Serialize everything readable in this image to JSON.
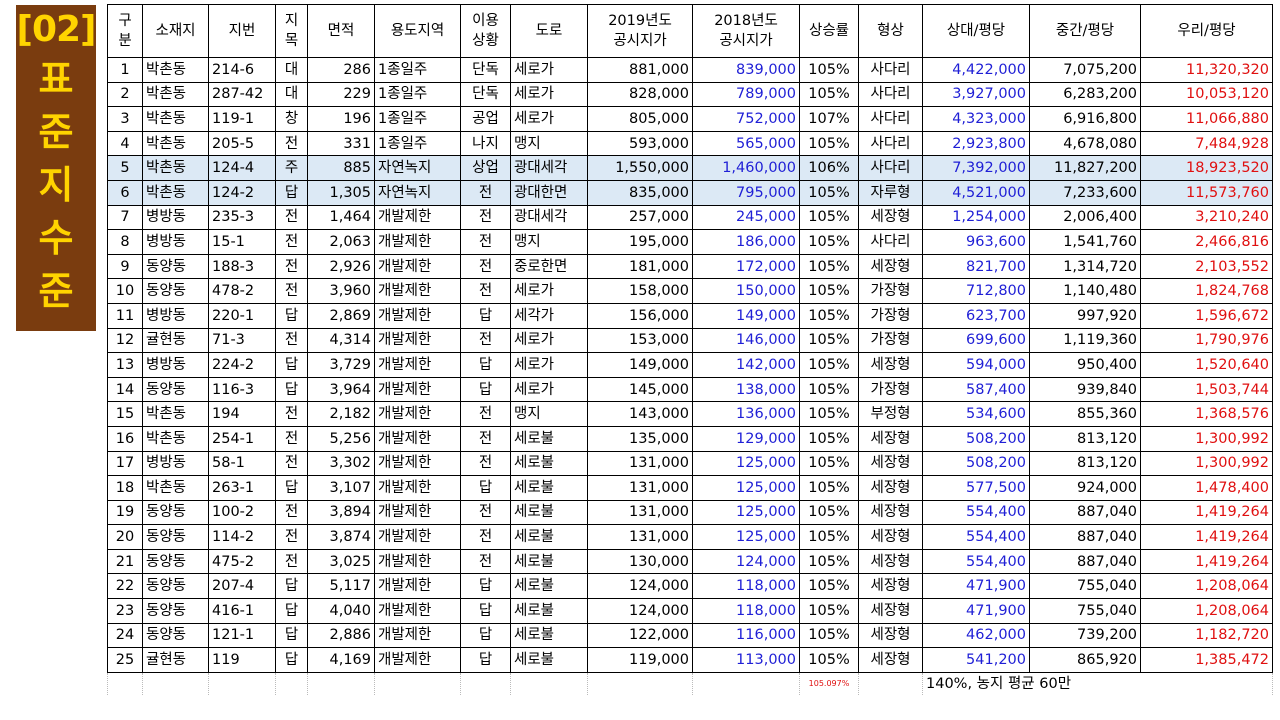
{
  "side_panel": {
    "code": "[02]",
    "vertical_chars": [
      "표",
      "준",
      "지",
      "수",
      "준"
    ]
  },
  "table": {
    "headers": {
      "no": "구\n분",
      "location": "소재지",
      "lot": "지번",
      "category": "지\n목",
      "area": "면적",
      "zoning": "용도지역",
      "usage": "이용\n상황",
      "road": "도로",
      "price_2019": "2019년도\n공시지가",
      "price_2018": "2018년도\n공시지가",
      "rise": "상승률",
      "shape": "형상",
      "per_pyeong_a": "상대/평당",
      "per_pyeong_b": "중간/평당",
      "per_pyeong_c": "우리/평당"
    },
    "rows": [
      [
        "1",
        "박촌동",
        "214-6",
        "대",
        "286",
        "1종일주",
        "단독",
        "세로가",
        "881,000",
        "839,000",
        "105%",
        "사다리",
        "4,422,000",
        "7,075,200",
        "11,320,320"
      ],
      [
        "2",
        "박촌동",
        "287-42",
        "대",
        "229",
        "1종일주",
        "단독",
        "세로가",
        "828,000",
        "789,000",
        "105%",
        "사다리",
        "3,927,000",
        "6,283,200",
        "10,053,120"
      ],
      [
        "3",
        "박촌동",
        "119-1",
        "창",
        "196",
        "1종일주",
        "공업",
        "세로가",
        "805,000",
        "752,000",
        "107%",
        "사다리",
        "4,323,000",
        "6,916,800",
        "11,066,880"
      ],
      [
        "4",
        "박촌동",
        "205-5",
        "전",
        "331",
        "1종일주",
        "나지",
        "맹지",
        "593,000",
        "565,000",
        "105%",
        "사다리",
        "2,923,800",
        "4,678,080",
        "7,484,928"
      ],
      [
        "5",
        "박촌동",
        "124-4",
        "주",
        "885",
        "자연녹지",
        "상업",
        "광대세각",
        "1,550,000",
        "1,460,000",
        "106%",
        "사다리",
        "7,392,000",
        "11,827,200",
        "18,923,520"
      ],
      [
        "6",
        "박촌동",
        "124-2",
        "답",
        "1,305",
        "자연녹지",
        "전",
        "광대한면",
        "835,000",
        "795,000",
        "105%",
        "자루형",
        "4,521,000",
        "7,233,600",
        "11,573,760"
      ],
      [
        "7",
        "병방동",
        "235-3",
        "전",
        "1,464",
        "개발제한",
        "전",
        "광대세각",
        "257,000",
        "245,000",
        "105%",
        "세장형",
        "1,254,000",
        "2,006,400",
        "3,210,240"
      ],
      [
        "8",
        "병방동",
        "15-1",
        "전",
        "2,063",
        "개발제한",
        "전",
        "맹지",
        "195,000",
        "186,000",
        "105%",
        "사다리",
        "963,600",
        "1,541,760",
        "2,466,816"
      ],
      [
        "9",
        "동양동",
        "188-3",
        "전",
        "2,926",
        "개발제한",
        "전",
        "중로한면",
        "181,000",
        "172,000",
        "105%",
        "세장형",
        "821,700",
        "1,314,720",
        "2,103,552"
      ],
      [
        "10",
        "동양동",
        "478-2",
        "전",
        "3,960",
        "개발제한",
        "전",
        "세로가",
        "158,000",
        "150,000",
        "105%",
        "가장형",
        "712,800",
        "1,140,480",
        "1,824,768"
      ],
      [
        "11",
        "병방동",
        "220-1",
        "답",
        "2,869",
        "개발제한",
        "답",
        "세각가",
        "156,000",
        "149,000",
        "105%",
        "가장형",
        "623,700",
        "997,920",
        "1,596,672"
      ],
      [
        "12",
        "귤현동",
        "71-3",
        "전",
        "4,314",
        "개발제한",
        "전",
        "세로가",
        "153,000",
        "146,000",
        "105%",
        "가장형",
        "699,600",
        "1,119,360",
        "1,790,976"
      ],
      [
        "13",
        "병방동",
        "224-2",
        "답",
        "3,729",
        "개발제한",
        "답",
        "세로가",
        "149,000",
        "142,000",
        "105%",
        "세장형",
        "594,000",
        "950,400",
        "1,520,640"
      ],
      [
        "14",
        "동양동",
        "116-3",
        "답",
        "3,964",
        "개발제한",
        "답",
        "세로가",
        "145,000",
        "138,000",
        "105%",
        "가장형",
        "587,400",
        "939,840",
        "1,503,744"
      ],
      [
        "15",
        "박촌동",
        "194",
        "전",
        "2,182",
        "개발제한",
        "전",
        "맹지",
        "143,000",
        "136,000",
        "105%",
        "부정형",
        "534,600",
        "855,360",
        "1,368,576"
      ],
      [
        "16",
        "박촌동",
        "254-1",
        "전",
        "5,256",
        "개발제한",
        "전",
        "세로불",
        "135,000",
        "129,000",
        "105%",
        "세장형",
        "508,200",
        "813,120",
        "1,300,992"
      ],
      [
        "17",
        "병방동",
        "58-1",
        "전",
        "3,302",
        "개발제한",
        "전",
        "세로불",
        "131,000",
        "125,000",
        "105%",
        "세장형",
        "508,200",
        "813,120",
        "1,300,992"
      ],
      [
        "18",
        "박촌동",
        "263-1",
        "답",
        "3,107",
        "개발제한",
        "답",
        "세로불",
        "131,000",
        "125,000",
        "105%",
        "세장형",
        "577,500",
        "924,000",
        "1,478,400"
      ],
      [
        "19",
        "동양동",
        "100-2",
        "전",
        "3,894",
        "개발제한",
        "전",
        "세로불",
        "131,000",
        "125,000",
        "105%",
        "세장형",
        "554,400",
        "887,040",
        "1,419,264"
      ],
      [
        "20",
        "동양동",
        "114-2",
        "전",
        "3,874",
        "개발제한",
        "전",
        "세로불",
        "131,000",
        "125,000",
        "105%",
        "세장형",
        "554,400",
        "887,040",
        "1,419,264"
      ],
      [
        "21",
        "동양동",
        "475-2",
        "전",
        "3,025",
        "개발제한",
        "전",
        "세로불",
        "130,000",
        "124,000",
        "105%",
        "세장형",
        "554,400",
        "887,040",
        "1,419,264"
      ],
      [
        "22",
        "동양동",
        "207-4",
        "답",
        "5,117",
        "개발제한",
        "답",
        "세로불",
        "124,000",
        "118,000",
        "105%",
        "세장형",
        "471,900",
        "755,040",
        "1,208,064"
      ],
      [
        "23",
        "동양동",
        "416-1",
        "답",
        "4,040",
        "개발제한",
        "답",
        "세로불",
        "124,000",
        "118,000",
        "105%",
        "세장형",
        "471,900",
        "755,040",
        "1,208,064"
      ],
      [
        "24",
        "동양동",
        "121-1",
        "답",
        "2,886",
        "개발제한",
        "답",
        "세로불",
        "122,000",
        "116,000",
        "105%",
        "세장형",
        "462,000",
        "739,200",
        "1,182,720"
      ],
      [
        "25",
        "귤현동",
        "119",
        "답",
        "4,169",
        "개발제한",
        "답",
        "세로불",
        "119,000",
        "113,000",
        "105%",
        "세장형",
        "541,200",
        "865,920",
        "1,385,472"
      ]
    ],
    "highlighted_rows": [
      5,
      6
    ],
    "footer": {
      "avg_rise": "105.097%",
      "note": "140%, 농지 평균 60만"
    }
  },
  "colors": {
    "side_bg": "#7a3c0f",
    "side_text": "#ffd400",
    "blue_values": "#1f1fd6",
    "red_values": "#e01010",
    "highlight_row": "#dce9f5"
  }
}
